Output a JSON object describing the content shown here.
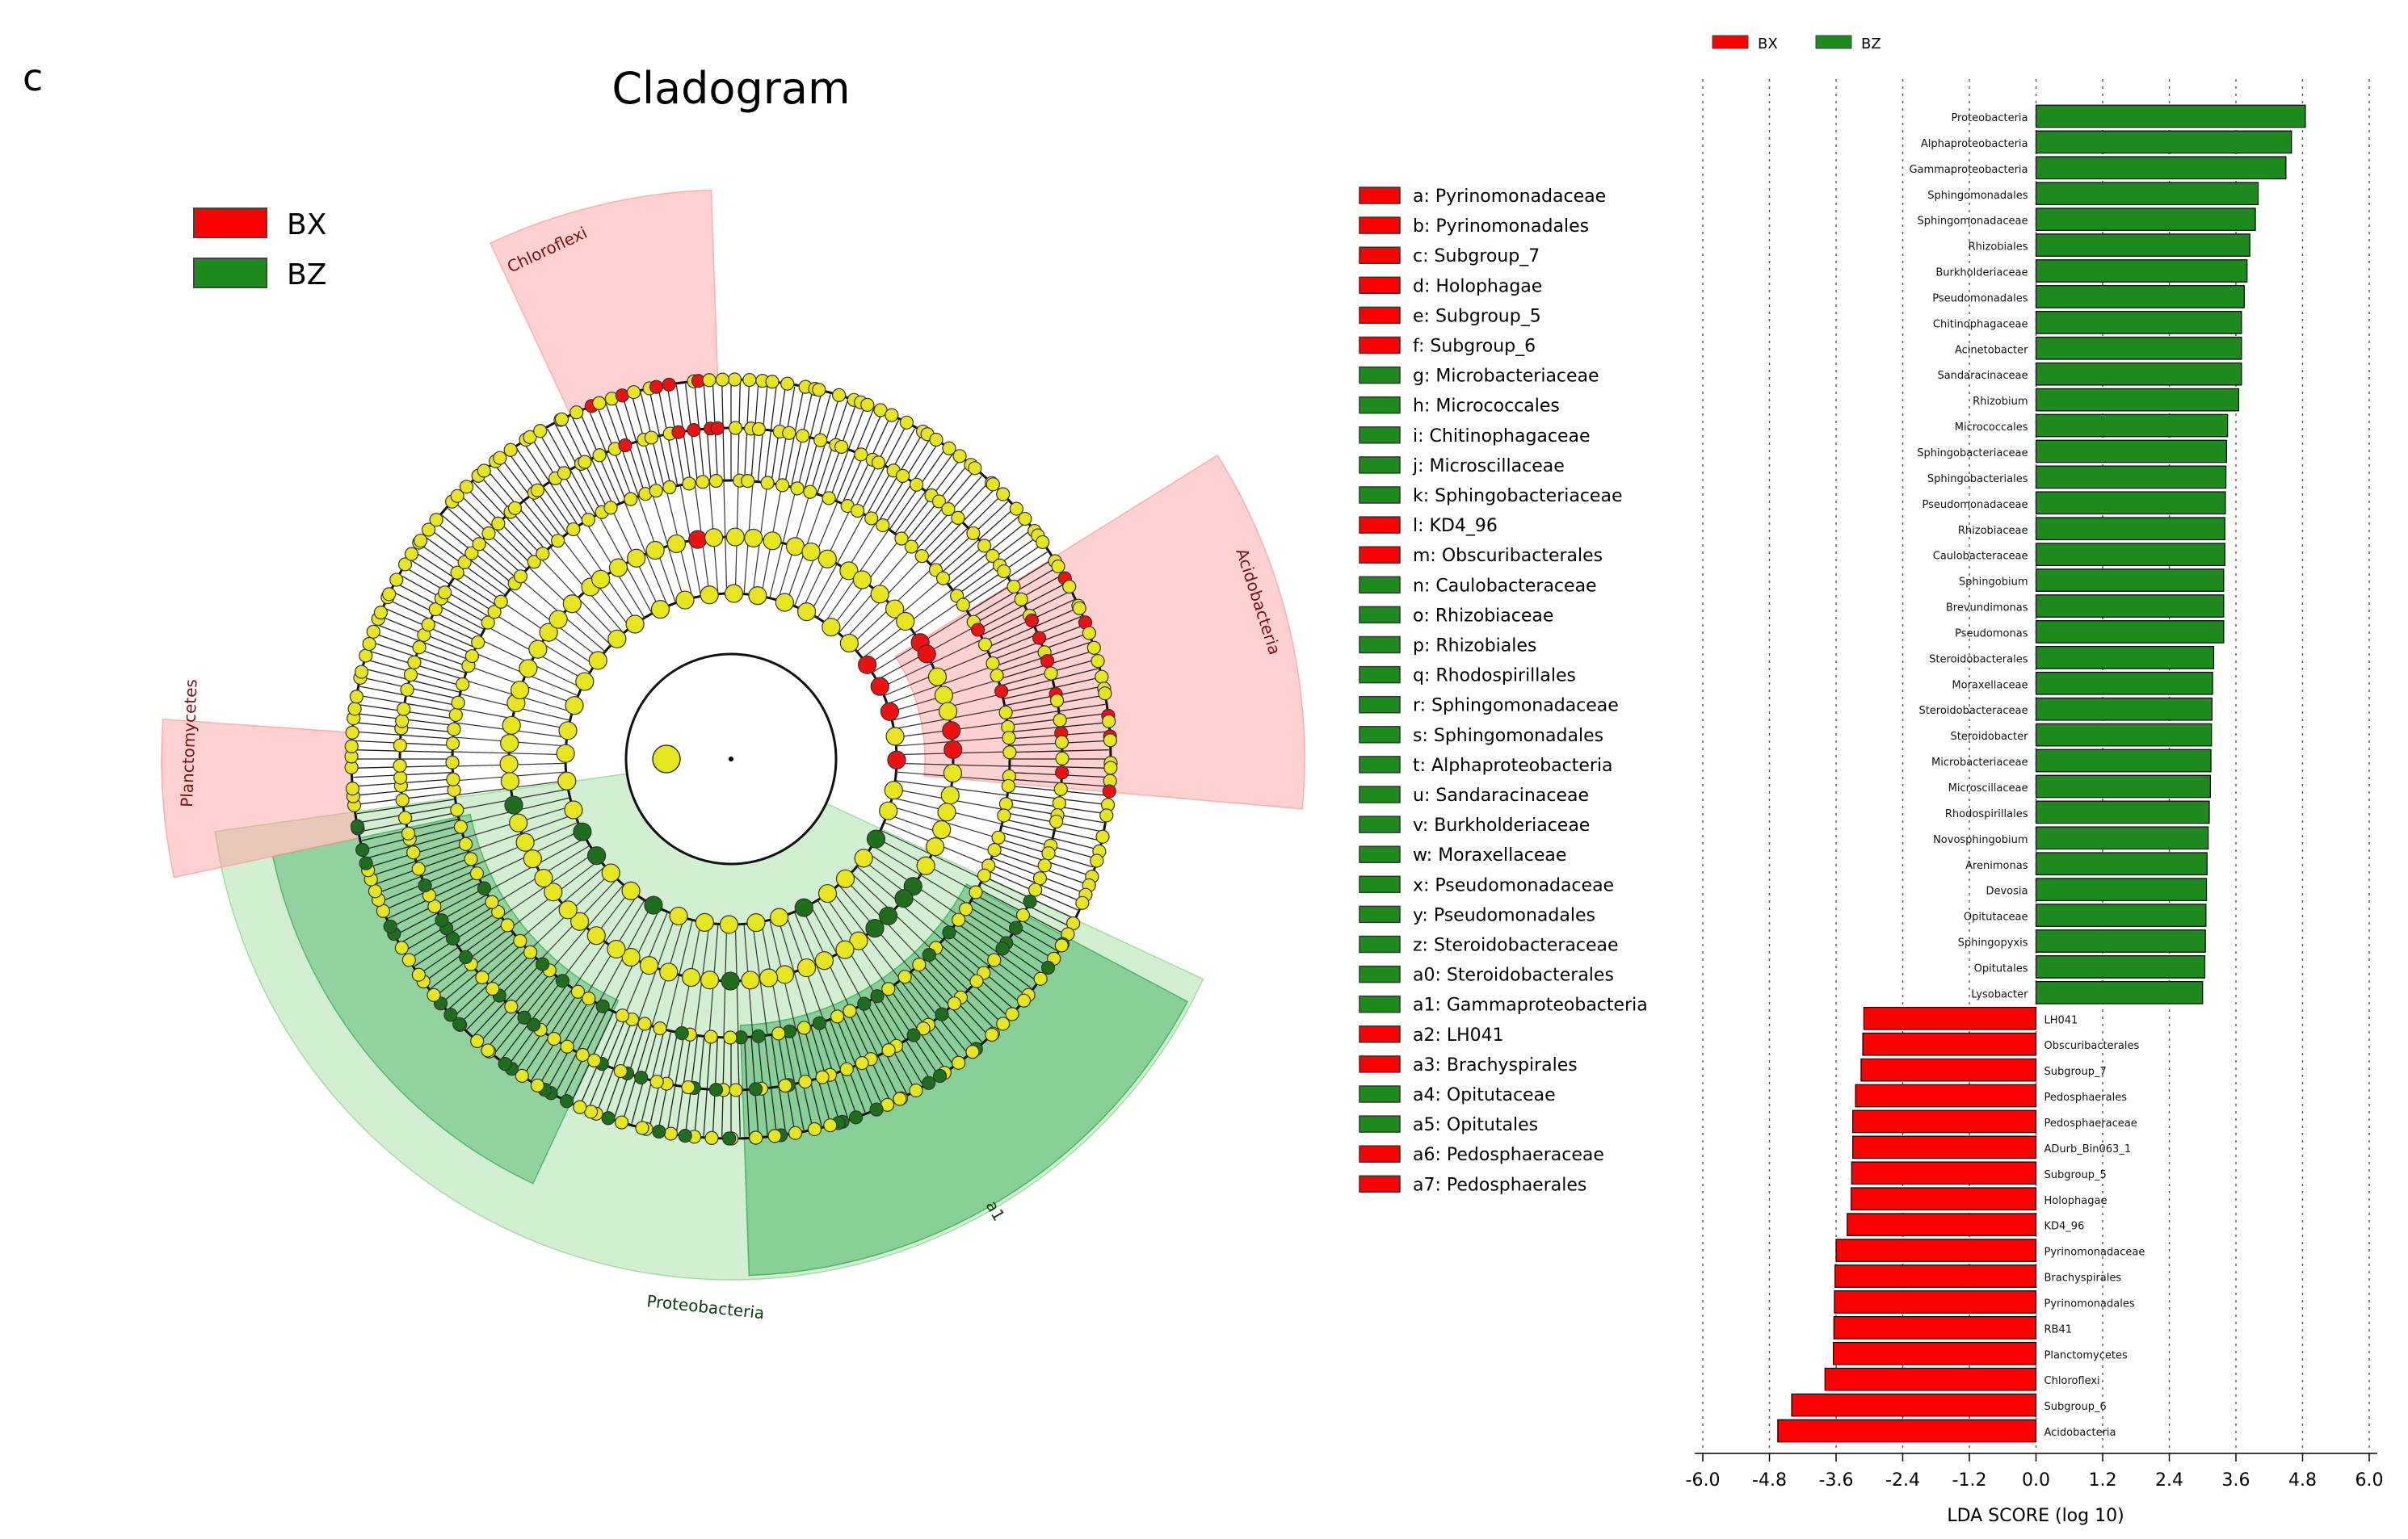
{
  "panel_letter": "c",
  "cladogram": {
    "title": "Cladogram",
    "legend": [
      {
        "name": "BX",
        "color": "#ff0000"
      },
      {
        "name": "BZ",
        "color": "#1e8a1e"
      }
    ],
    "highlighted_clades": [
      {
        "label": "Chloroflexi",
        "group": "BX"
      },
      {
        "label": "Acidobacteria",
        "group": "BX"
      },
      {
        "label": "Planctomycetes",
        "group": "BX"
      },
      {
        "label": "Proteobacteria",
        "group": "BZ"
      },
      {
        "label": "a1",
        "group": "BZ"
      }
    ]
  },
  "taxa_key": [
    {
      "label": "a: Pyrinomonadaceae",
      "group": "BX"
    },
    {
      "label": "b: Pyrinomonadales",
      "group": "BX"
    },
    {
      "label": "c: Subgroup_7",
      "group": "BX"
    },
    {
      "label": "d: Holophagae",
      "group": "BX"
    },
    {
      "label": "e: Subgroup_5",
      "group": "BX"
    },
    {
      "label": "f: Subgroup_6",
      "group": "BX"
    },
    {
      "label": "g: Microbacteriaceae",
      "group": "BZ"
    },
    {
      "label": "h: Micrococcales",
      "group": "BZ"
    },
    {
      "label": "i: Chitinophagaceae",
      "group": "BZ"
    },
    {
      "label": "j: Microscillaceae",
      "group": "BZ"
    },
    {
      "label": "k: Sphingobacteriaceae",
      "group": "BZ"
    },
    {
      "label": "l: KD4_96",
      "group": "BX"
    },
    {
      "label": "m: Obscuribacterales",
      "group": "BX"
    },
    {
      "label": "n: Caulobacteraceae",
      "group": "BZ"
    },
    {
      "label": "o: Rhizobiaceae",
      "group": "BZ"
    },
    {
      "label": "p: Rhizobiales",
      "group": "BZ"
    },
    {
      "label": "q: Rhodospirillales",
      "group": "BZ"
    },
    {
      "label": "r: Sphingomonadaceae",
      "group": "BZ"
    },
    {
      "label": "s: Sphingomonadales",
      "group": "BZ"
    },
    {
      "label": "t: Alphaproteobacteria",
      "group": "BZ"
    },
    {
      "label": "u: Sandaracinaceae",
      "group": "BZ"
    },
    {
      "label": "v: Burkholderiaceae",
      "group": "BZ"
    },
    {
      "label": "w: Moraxellaceae",
      "group": "BZ"
    },
    {
      "label": "x: Pseudomonadaceae",
      "group": "BZ"
    },
    {
      "label": "y: Pseudomonadales",
      "group": "BZ"
    },
    {
      "label": "z: Steroidobacteraceae",
      "group": "BZ"
    },
    {
      "label": "a0: Steroidobacterales",
      "group": "BZ"
    },
    {
      "label": "a1: Gammaproteobacteria",
      "group": "BZ"
    },
    {
      "label": "a2: LH041",
      "group": "BX"
    },
    {
      "label": "a3: Brachyspirales",
      "group": "BX"
    },
    {
      "label": "a4: Opitutaceae",
      "group": "BZ"
    },
    {
      "label": "a5: Opitutales",
      "group": "BZ"
    },
    {
      "label": "a6: Pedosphaeraceae",
      "group": "BX"
    },
    {
      "label": "a7: Pedosphaerales",
      "group": "BX"
    }
  ],
  "chart_data": {
    "type": "bar",
    "orientation": "horizontal",
    "legend": [
      {
        "name": "BX",
        "color": "#ff0000"
      },
      {
        "name": "BZ",
        "color": "#1e8a1e"
      }
    ],
    "legend_position": "top",
    "xlabel": "LDA SCORE (log 10)",
    "xlim": [
      -6.0,
      6.0
    ],
    "xticks": [
      "-6.0",
      "-4.8",
      "-3.6",
      "-2.4",
      "-1.2",
      "0.0",
      "1.2",
      "2.4",
      "3.6",
      "4.8",
      "6.0"
    ],
    "grid": "vertical dotted",
    "bars": [
      {
        "label": "Proteobacteria",
        "value": 4.85,
        "group": "BZ"
      },
      {
        "label": "Alphaproteobacteria",
        "value": 4.6,
        "group": "BZ"
      },
      {
        "label": "Gammaproteobacteria",
        "value": 4.5,
        "group": "BZ"
      },
      {
        "label": "Sphingomonadales",
        "value": 4.0,
        "group": "BZ"
      },
      {
        "label": "Sphingomonadaceae",
        "value": 3.95,
        "group": "BZ"
      },
      {
        "label": "Rhizobiales",
        "value": 3.85,
        "group": "BZ"
      },
      {
        "label": "Burkholderiaceae",
        "value": 3.8,
        "group": "BZ"
      },
      {
        "label": "Pseudomonadales",
        "value": 3.75,
        "group": "BZ"
      },
      {
        "label": "Chitinophagaceae",
        "value": 3.7,
        "group": "BZ"
      },
      {
        "label": "Acinetobacter",
        "value": 3.7,
        "group": "BZ"
      },
      {
        "label": "Sandaracinaceae",
        "value": 3.7,
        "group": "BZ"
      },
      {
        "label": "Rhizobium",
        "value": 3.65,
        "group": "BZ"
      },
      {
        "label": "Micrococcales",
        "value": 3.45,
        "group": "BZ"
      },
      {
        "label": "Sphingobacteriaceae",
        "value": 3.43,
        "group": "BZ"
      },
      {
        "label": "Sphingobacteriales",
        "value": 3.42,
        "group": "BZ"
      },
      {
        "label": "Pseudomonadaceae",
        "value": 3.41,
        "group": "BZ"
      },
      {
        "label": "Rhizobiaceae",
        "value": 3.4,
        "group": "BZ"
      },
      {
        "label": "Caulobacteraceae",
        "value": 3.4,
        "group": "BZ"
      },
      {
        "label": "Sphingobium",
        "value": 3.38,
        "group": "BZ"
      },
      {
        "label": "Brevundimonas",
        "value": 3.38,
        "group": "BZ"
      },
      {
        "label": "Pseudomonas",
        "value": 3.38,
        "group": "BZ"
      },
      {
        "label": "Steroidobacterales",
        "value": 3.2,
        "group": "BZ"
      },
      {
        "label": "Moraxellaceae",
        "value": 3.18,
        "group": "BZ"
      },
      {
        "label": "Steroidobacteraceae",
        "value": 3.17,
        "group": "BZ"
      },
      {
        "label": "Steroidobacter",
        "value": 3.16,
        "group": "BZ"
      },
      {
        "label": "Microbacteriaceae",
        "value": 3.15,
        "group": "BZ"
      },
      {
        "label": "Microscillaceae",
        "value": 3.14,
        "group": "BZ"
      },
      {
        "label": "Rhodospirillales",
        "value": 3.12,
        "group": "BZ"
      },
      {
        "label": "Novosphingobium",
        "value": 3.1,
        "group": "BZ"
      },
      {
        "label": "Arenimonas",
        "value": 3.08,
        "group": "BZ"
      },
      {
        "label": "Devosia",
        "value": 3.07,
        "group": "BZ"
      },
      {
        "label": "Opitutaceae",
        "value": 3.06,
        "group": "BZ"
      },
      {
        "label": "Sphingopyxis",
        "value": 3.05,
        "group": "BZ"
      },
      {
        "label": "Opitutales",
        "value": 3.04,
        "group": "BZ"
      },
      {
        "label": "Lysobacter",
        "value": 3.0,
        "group": "BZ"
      },
      {
        "label": "LH041",
        "value": -3.1,
        "group": "BX"
      },
      {
        "label": "Obscuribacterales",
        "value": -3.12,
        "group": "BX"
      },
      {
        "label": "Subgroup_7",
        "value": -3.15,
        "group": "BX"
      },
      {
        "label": "Pedosphaerales",
        "value": -3.25,
        "group": "BX"
      },
      {
        "label": "Pedosphaeraceae",
        "value": -3.3,
        "group": "BX"
      },
      {
        "label": "ADurb_Bin063_1",
        "value": -3.3,
        "group": "BX"
      },
      {
        "label": "Subgroup_5",
        "value": -3.32,
        "group": "BX"
      },
      {
        "label": "Holophagae",
        "value": -3.33,
        "group": "BX"
      },
      {
        "label": "KD4_96",
        "value": -3.4,
        "group": "BX"
      },
      {
        "label": "Pyrinomonadaceae",
        "value": -3.6,
        "group": "BX"
      },
      {
        "label": "Brachyspirales",
        "value": -3.62,
        "group": "BX"
      },
      {
        "label": "Pyrinomonadales",
        "value": -3.63,
        "group": "BX"
      },
      {
        "label": "RB41",
        "value": -3.64,
        "group": "BX"
      },
      {
        "label": "Planctomycetes",
        "value": -3.65,
        "group": "BX"
      },
      {
        "label": "Chloroflexi",
        "value": -3.8,
        "group": "BX"
      },
      {
        "label": "Subgroup_6",
        "value": -4.4,
        "group": "BX"
      },
      {
        "label": "Acidobacteria",
        "value": -4.65,
        "group": "BX"
      }
    ]
  }
}
